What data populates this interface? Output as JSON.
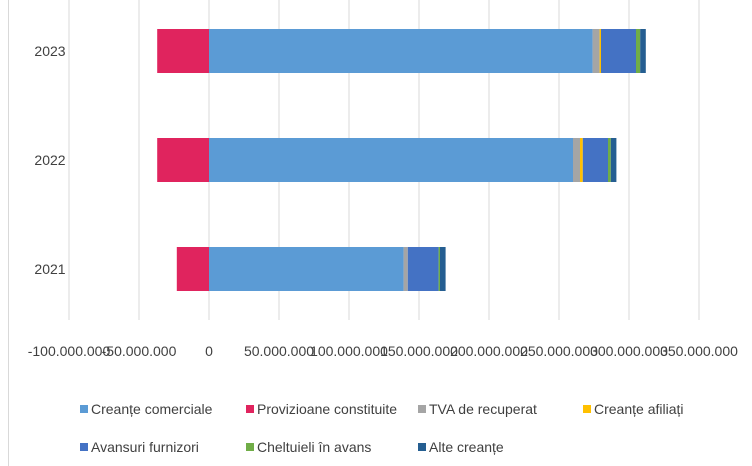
{
  "chart_data": {
    "type": "bar",
    "orientation": "horizontal",
    "stacked": true,
    "title": "",
    "xlabel": "",
    "ylabel": "",
    "categories": [
      "2023",
      "2022",
      "2021"
    ],
    "xlim": [
      -100000000,
      350000000
    ],
    "xticks": [
      -100000000,
      -50000000,
      0,
      50000000,
      100000000,
      150000000,
      200000000,
      250000000,
      300000000,
      350000000
    ],
    "xtick_labels": [
      "-100.000.000",
      "-50.000.000",
      "0",
      "50.000.000",
      "100.000.000",
      "150.000.000",
      "200.000.000",
      "250.000.000",
      "300.000.000",
      "350.000.000"
    ],
    "grid": true,
    "legend_position": "bottom",
    "series": [
      {
        "name": "Creanțe comerciale",
        "color": "#5b9bd5",
        "values": [
          274000000,
          260000000,
          139000000
        ]
      },
      {
        "name": "Provizioane constituite",
        "color": "#e0245e",
        "values": [
          -37000000,
          -37000000,
          -23000000
        ]
      },
      {
        "name": "TVA de recuperat",
        "color": "#a5a5a5",
        "values": [
          5000000,
          5000000,
          3000000
        ]
      },
      {
        "name": "Creanțe afiliați",
        "color": "#ffc000",
        "values": [
          1000000,
          2000000,
          0
        ]
      },
      {
        "name": "Avansuri furnizori",
        "color": "#4472c4",
        "values": [
          25000000,
          18000000,
          22000000
        ]
      },
      {
        "name": "Cheltuieli în avans",
        "color": "#70ad47",
        "values": [
          3000000,
          2000000,
          1000000
        ]
      },
      {
        "name": "Alte creanțe",
        "color": "#255e91",
        "values": [
          4000000,
          4000000,
          4000000
        ]
      }
    ]
  }
}
